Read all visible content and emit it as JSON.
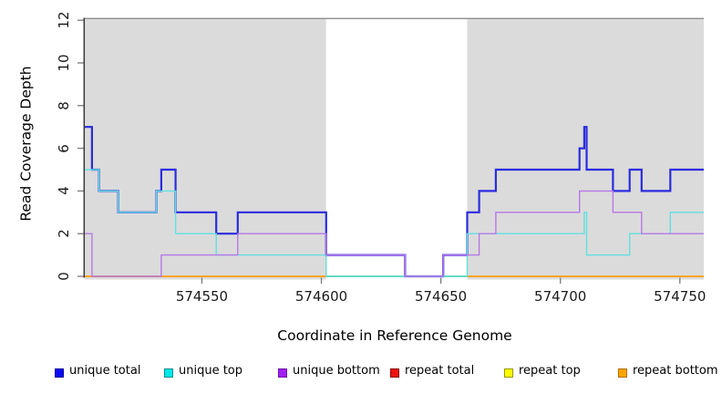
{
  "chart_data": {
    "type": "line",
    "subtype": "step",
    "title": "",
    "xlabel": "Coordinate in Reference Genome",
    "ylabel": "Read Coverage Depth",
    "xlim": [
      574501,
      574760
    ],
    "ylim": [
      0,
      12
    ],
    "x_ticks": [
      574550,
      574600,
      574650,
      574700,
      574750
    ],
    "y_ticks": [
      0,
      2,
      4,
      6,
      8,
      10,
      12
    ],
    "grid": false,
    "legend_position": "bottom",
    "background_regions": [
      {
        "name": "shaded-region-left",
        "from": 574501,
        "to": 574602,
        "fill": "#DBDBDB"
      },
      {
        "name": "unshaded-gap",
        "from": 574602,
        "to": 574661,
        "fill": "#FFFFFF"
      },
      {
        "name": "shaded-region-right",
        "from": 574661,
        "to": 574760,
        "fill": "#DBDBDB"
      }
    ],
    "zero_line_segments": [
      {
        "name": "repeat-bottom-zero-left",
        "from": 574501,
        "to": 574602,
        "color": "#FFA41E"
      },
      {
        "name": "repeat-overlap-zero-gap",
        "from": 574602,
        "to": 574661,
        "color": "#77C877"
      },
      {
        "name": "repeat-bottom-zero-right",
        "from": 574661,
        "to": 574760,
        "color": "#FFA41E"
      }
    ],
    "series": [
      {
        "name": "unique total",
        "line_color": "#2B2BDF",
        "line_width": 2.2,
        "visible": true,
        "steps": [
          [
            574501,
            7
          ],
          [
            574504,
            5
          ],
          [
            574507,
            4
          ],
          [
            574515,
            3
          ],
          [
            574531,
            4
          ],
          [
            574533,
            5
          ],
          [
            574539,
            3
          ],
          [
            574556,
            2
          ],
          [
            574565,
            3
          ],
          [
            574602,
            1
          ],
          [
            574635,
            0
          ],
          [
            574651,
            1
          ],
          [
            574661,
            3
          ],
          [
            574666,
            4
          ],
          [
            574673,
            5
          ],
          [
            574708,
            6
          ],
          [
            574710,
            7
          ],
          [
            574711,
            5
          ],
          [
            574722,
            4
          ],
          [
            574729,
            5
          ],
          [
            574734,
            4
          ],
          [
            574746,
            5
          ]
        ]
      },
      {
        "name": "unique top",
        "line_color": "#63DFDF",
        "line_width": 1.4,
        "visible": true,
        "steps": [
          [
            574501,
            5
          ],
          [
            574507,
            4
          ],
          [
            574515,
            3
          ],
          [
            574531,
            4
          ],
          [
            574539,
            2
          ],
          [
            574556,
            1
          ],
          [
            574602,
            0
          ],
          [
            574661,
            2
          ],
          [
            574710,
            3
          ],
          [
            574711,
            1
          ],
          [
            574729,
            2
          ],
          [
            574746,
            3
          ]
        ]
      },
      {
        "name": "unique bottom",
        "line_color": "#B678E6",
        "line_width": 1.4,
        "visible": true,
        "steps": [
          [
            574501,
            2
          ],
          [
            574504,
            0
          ],
          [
            574533,
            1
          ],
          [
            574565,
            2
          ],
          [
            574602,
            1
          ],
          [
            574635,
            0
          ],
          [
            574651,
            1
          ],
          [
            574666,
            2
          ],
          [
            574673,
            3
          ],
          [
            574708,
            4
          ],
          [
            574722,
            3
          ],
          [
            574734,
            2
          ]
        ]
      },
      {
        "name": "repeat total",
        "line_color": "#EE1111",
        "line_width": 1.4,
        "visible": false,
        "steps": [
          [
            574501,
            0
          ]
        ]
      },
      {
        "name": "repeat top",
        "line_color": "#FFFF00",
        "line_width": 1.4,
        "visible": false,
        "steps": [
          [
            574501,
            0
          ]
        ]
      },
      {
        "name": "repeat bottom",
        "line_color": "#FFA41E",
        "line_width": 2,
        "visible": false,
        "steps": [
          [
            574501,
            0
          ]
        ]
      }
    ],
    "note": "repeat series lie at depth 0; they are drawn as the zero_line_segments (orange over shaded regions, yellow/cyan blend shown green across the unshaded gap)."
  },
  "legend": {
    "items": [
      {
        "label": "unique total",
        "fill": "#0A0AEF",
        "border": "#0000A0"
      },
      {
        "label": "unique top",
        "fill": "#00E8E8",
        "border": "#009090"
      },
      {
        "label": "unique bottom",
        "fill": "#A020F0",
        "border": "#6C12A8"
      },
      {
        "label": "repeat total",
        "fill": "#EE1111",
        "border": "#8B0000"
      },
      {
        "label": "repeat top",
        "fill": "#FFFF00",
        "border": "#9A9A00"
      },
      {
        "label": "repeat bottom",
        "fill": "#FFA500",
        "border": "#B06F00"
      }
    ]
  },
  "style": {
    "plot_top_border_color": "#8E8E8E",
    "axis_line_color": "#3A3A3A",
    "tick_color": "#7A7A7A",
    "shaded_fill": "#DBDBDB"
  }
}
